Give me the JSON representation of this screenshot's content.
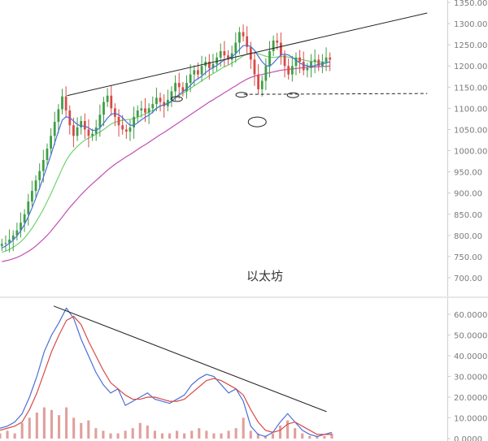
{
  "chart_data": [
    {
      "type": "candlestick",
      "watermark": "以太坊",
      "yticks": [
        "1350.00",
        "1300.00",
        "1250.00",
        "1200.00",
        "1150.00",
        "1100.00",
        "1050.00",
        "1000.00",
        "950.00",
        "900.00",
        "850.00",
        "800.00",
        "750.00",
        "700.00"
      ],
      "ylim": [
        680,
        1360
      ],
      "y_axis_side": "right",
      "grid": false,
      "colors": {
        "up": "#3e9e46",
        "down": "#d84b47",
        "ma_blue": "#4a6fd8",
        "ma_green": "#6fd36f",
        "ma_purple": "#c04fb0",
        "line": "#222222"
      },
      "close_series": [
        780,
        782,
        790,
        800,
        812,
        830,
        850,
        880,
        905,
        930,
        952,
        978,
        1005,
        1035,
        1068,
        1098,
        1128,
        1095,
        1060,
        1035,
        1055,
        1070,
        1050,
        1035,
        1040,
        1055,
        1085,
        1115,
        1130,
        1100,
        1080,
        1060,
        1050,
        1045,
        1055,
        1080,
        1095,
        1100,
        1090,
        1100,
        1110,
        1125,
        1115,
        1105,
        1120,
        1140,
        1160,
        1150,
        1140,
        1160,
        1180,
        1190,
        1180,
        1200,
        1210,
        1195,
        1205,
        1220,
        1235,
        1225,
        1215,
        1230,
        1255,
        1280,
        1270,
        1245,
        1215,
        1180,
        1145,
        1165,
        1200,
        1235,
        1260,
        1255,
        1225,
        1200,
        1180,
        1200,
        1220,
        1210,
        1190,
        1195,
        1210,
        1215,
        1200,
        1210,
        1220,
        1215
      ],
      "ma_series": [
        {
          "color": "blue",
          "values": [
            770,
            775,
            781,
            789,
            799,
            811,
            826,
            844,
            865,
            888,
            912,
            937,
            963,
            990,
            1018,
            1046,
            1072,
            1080,
            1078,
            1070,
            1062,
            1058,
            1058,
            1054,
            1048,
            1048,
            1054,
            1065,
            1077,
            1086,
            1088,
            1085,
            1078,
            1068,
            1060,
            1060,
            1066,
            1073,
            1079,
            1084,
            1091,
            1100,
            1106,
            1108,
            1111,
            1116,
            1125,
            1133,
            1139,
            1146,
            1154,
            1164,
            1170,
            1176,
            1184,
            1191,
            1196,
            1201,
            1208,
            1214,
            1218,
            1222,
            1229,
            1239,
            1248,
            1249,
            1246,
            1237,
            1223,
            1210,
            1201,
            1199,
            1207,
            1217,
            1226,
            1228,
            1226,
            1220,
            1214,
            1207,
            1203,
            1200,
            1199,
            1201,
            1204,
            1205,
            1207,
            1210
          ]
        },
        {
          "color": "green",
          "values": [
            760,
            763,
            767,
            772,
            778,
            785,
            794,
            805,
            817,
            831,
            846,
            862,
            880,
            898,
            918,
            938,
            958,
            976,
            990,
            1001,
            1010,
            1018,
            1025,
            1030,
            1034,
            1039,
            1044,
            1050,
            1057,
            1063,
            1067,
            1070,
            1072,
            1073,
            1074,
            1076,
            1079,
            1083,
            1087,
            1091,
            1095,
            1100,
            1105,
            1109,
            1113,
            1118,
            1124,
            1130,
            1135,
            1141,
            1147,
            1153,
            1159,
            1165,
            1171,
            1177,
            1182,
            1187,
            1193,
            1198,
            1202,
            1207,
            1212,
            1218,
            1224,
            1228,
            1231,
            1231,
            1229,
            1226,
            1223,
            1221,
            1220,
            1221,
            1222,
            1222,
            1221,
            1219,
            1218,
            1216,
            1214,
            1212,
            1211,
            1210,
            1210,
            1209,
            1209,
            1209
          ]
        },
        {
          "color": "purple",
          "values": [
            738,
            740,
            742,
            745,
            748,
            752,
            757,
            762,
            768,
            775,
            783,
            791,
            800,
            810,
            821,
            832,
            843,
            855,
            866,
            876,
            886,
            896,
            905,
            914,
            922,
            930,
            938,
            946,
            954,
            961,
            968,
            974,
            980,
            986,
            991,
            997,
            1003,
            1009,
            1014,
            1020,
            1026,
            1032,
            1038,
            1043,
            1049,
            1055,
            1061,
            1067,
            1073,
            1079,
            1085,
            1091,
            1097,
            1103,
            1109,
            1115,
            1120,
            1126,
            1131,
            1137,
            1142,
            1148,
            1153,
            1159,
            1164,
            1169,
            1173,
            1176,
            1178,
            1180,
            1182,
            1184,
            1186,
            1188,
            1190,
            1191,
            1192,
            1193,
            1194,
            1195,
            1196,
            1197,
            1197,
            1198,
            1198,
            1199,
            1199,
            1200
          ]
        }
      ],
      "trendlines": [
        {
          "style": "solid",
          "from": [
            0.15,
            1130
          ],
          "to": [
            0.955,
            1325
          ]
        },
        {
          "style": "dashed",
          "from": [
            0.545,
            1133
          ],
          "to": [
            0.955,
            1135
          ]
        }
      ],
      "markers": [
        {
          "x": 0.575,
          "y": 1068,
          "kind": "circle"
        },
        {
          "x": 0.395,
          "y": 1122,
          "kind": "ellipse"
        },
        {
          "x": 0.54,
          "y": 1132,
          "kind": "ellipse"
        },
        {
          "x": 0.655,
          "y": 1131,
          "kind": "ellipse"
        }
      ]
    },
    {
      "type": "line",
      "yticks": [
        "60.0000",
        "50.0000",
        "40.0000",
        "30.0000",
        "20.0000",
        "10.0000",
        "0.0000"
      ],
      "ylim": [
        0,
        66
      ],
      "y_axis_side": "right",
      "series": [
        {
          "color": "blue",
          "values": [
            5,
            6,
            8,
            12,
            20,
            30,
            42,
            50,
            56,
            63,
            58,
            48,
            40,
            32,
            26,
            22,
            24,
            16,
            18,
            20,
            22,
            19,
            18,
            17,
            19,
            21,
            26,
            29,
            31,
            30,
            26,
            22,
            24,
            18,
            6,
            2,
            1,
            3,
            8,
            12,
            8,
            4,
            2,
            1,
            2,
            3
          ]
        },
        {
          "color": "red",
          "values": [
            4,
            5,
            6,
            8,
            14,
            22,
            32,
            42,
            50,
            57,
            59,
            55,
            47,
            40,
            33,
            27,
            24,
            21,
            19,
            19,
            20,
            20,
            19,
            18,
            18,
            19,
            22,
            25,
            28,
            29,
            28,
            26,
            24,
            21,
            14,
            8,
            4,
            3,
            4,
            7,
            8,
            6,
            4,
            2,
            2,
            2
          ]
        }
      ],
      "volume": [
        2,
        3,
        2,
        6,
        8,
        10,
        12,
        11,
        9,
        12,
        8,
        6,
        7,
        4,
        3,
        2,
        2,
        3,
        4,
        6,
        5,
        3,
        2,
        2,
        3,
        2,
        3,
        4,
        3,
        2,
        2,
        3,
        4,
        8,
        3,
        2,
        1,
        2,
        5,
        7,
        4,
        2,
        1,
        1,
        1,
        2
      ],
      "trendline": {
        "style": "solid",
        "from": [
          0.12,
          64
        ],
        "to": [
          0.73,
          13
        ]
      }
    }
  ]
}
